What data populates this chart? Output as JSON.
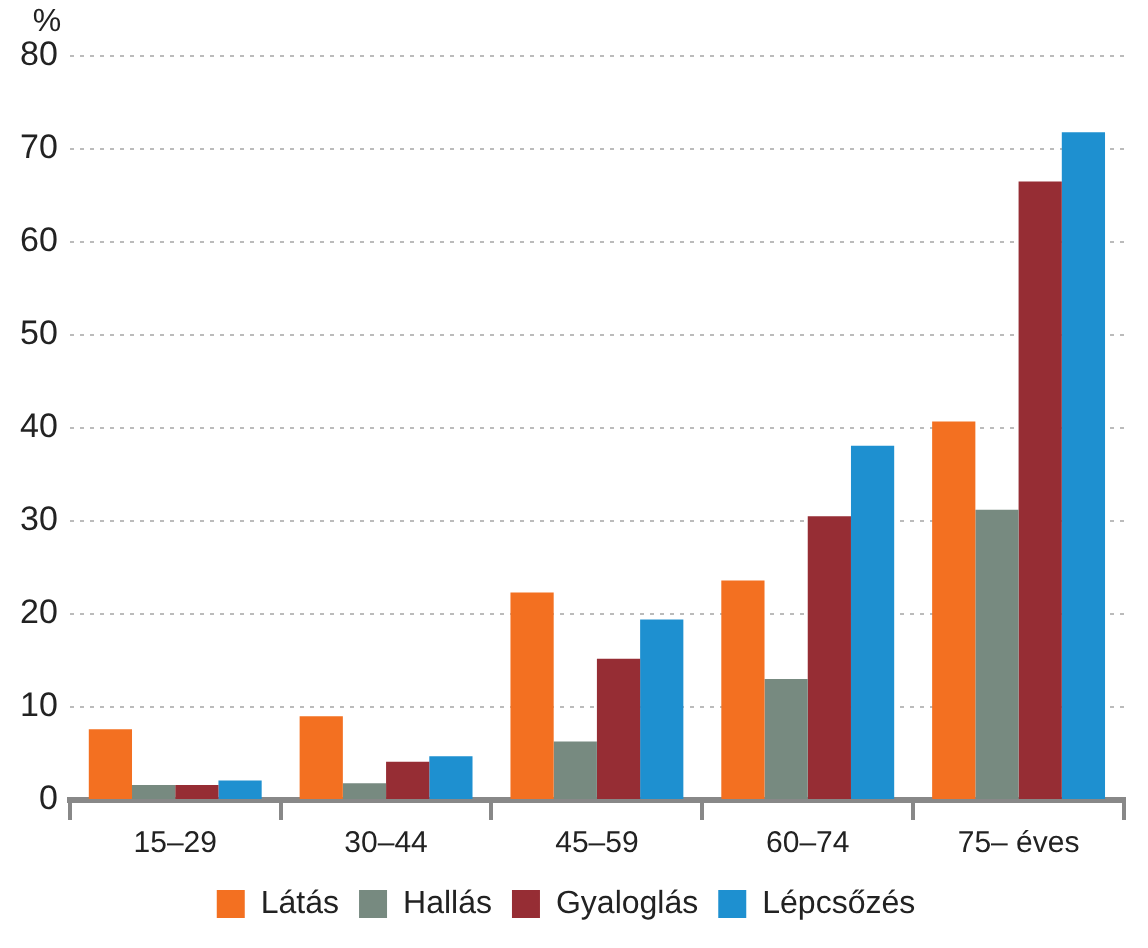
{
  "chart_data": {
    "type": "bar",
    "ylabel": "%",
    "categories": [
      "15–29",
      "30–44",
      "45–59",
      "60–74",
      "75– éves"
    ],
    "series": [
      {
        "name": "Látás",
        "color": "#f37021",
        "values": [
          7.6,
          9.0,
          22.3,
          23.6,
          40.7
        ]
      },
      {
        "name": "Hallás",
        "color": "#778a80",
        "values": [
          1.6,
          1.8,
          6.3,
          13.0,
          31.2
        ]
      },
      {
        "name": "Gyaloglás",
        "color": "#962d34",
        "values": [
          1.6,
          4.1,
          15.2,
          30.5,
          66.5
        ]
      },
      {
        "name": "Lépcsőzés",
        "color": "#1e90d0",
        "values": [
          2.1,
          4.7,
          19.4,
          38.1,
          71.8
        ]
      }
    ],
    "ylim": [
      0,
      80
    ],
    "yticks": [
      0,
      10,
      20,
      30,
      40,
      50,
      60,
      70,
      80
    ],
    "grid": "y",
    "legend": "bottom"
  }
}
